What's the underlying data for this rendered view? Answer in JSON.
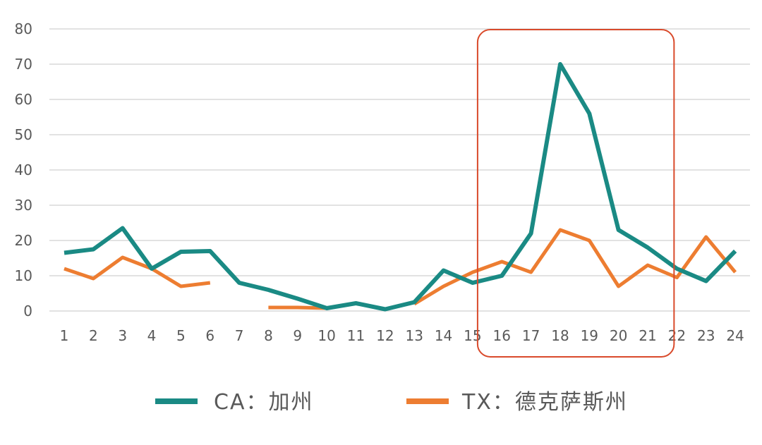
{
  "chart_data": {
    "type": "line",
    "x": [
      "1",
      "2",
      "3",
      "4",
      "5",
      "6",
      "7",
      "8",
      "9",
      "10",
      "11",
      "12",
      "13",
      "14",
      "15",
      "16",
      "17",
      "18",
      "19",
      "20",
      "21",
      "22",
      "23",
      "24"
    ],
    "ylim": [
      0,
      80
    ],
    "yticks": [
      "0",
      "10",
      "20",
      "30",
      "40",
      "50",
      "60",
      "70",
      "80"
    ],
    "grid": true,
    "legend_position": "bottom",
    "series": [
      {
        "name": "CA：加州",
        "color": "#1a8a84",
        "values": [
          16.5,
          17.5,
          23.5,
          12,
          16.8,
          17,
          8,
          6,
          3.5,
          0.8,
          2.2,
          0.5,
          2.5,
          11.5,
          8,
          10,
          22,
          70,
          56,
          23,
          18,
          12,
          8.5,
          17
        ]
      },
      {
        "name": "TX：德克萨斯州",
        "color": "#ed7d31",
        "values": [
          12,
          9.2,
          15.2,
          12,
          7,
          8,
          null,
          1,
          1,
          0.8,
          null,
          null,
          2,
          7,
          11,
          14,
          11,
          23,
          20,
          7,
          13,
          9.5,
          21,
          11
        ]
      }
    ],
    "annotation": {
      "type": "highlight-box",
      "color": "#d94a2b",
      "x_from": "15",
      "x_to": "22"
    }
  }
}
